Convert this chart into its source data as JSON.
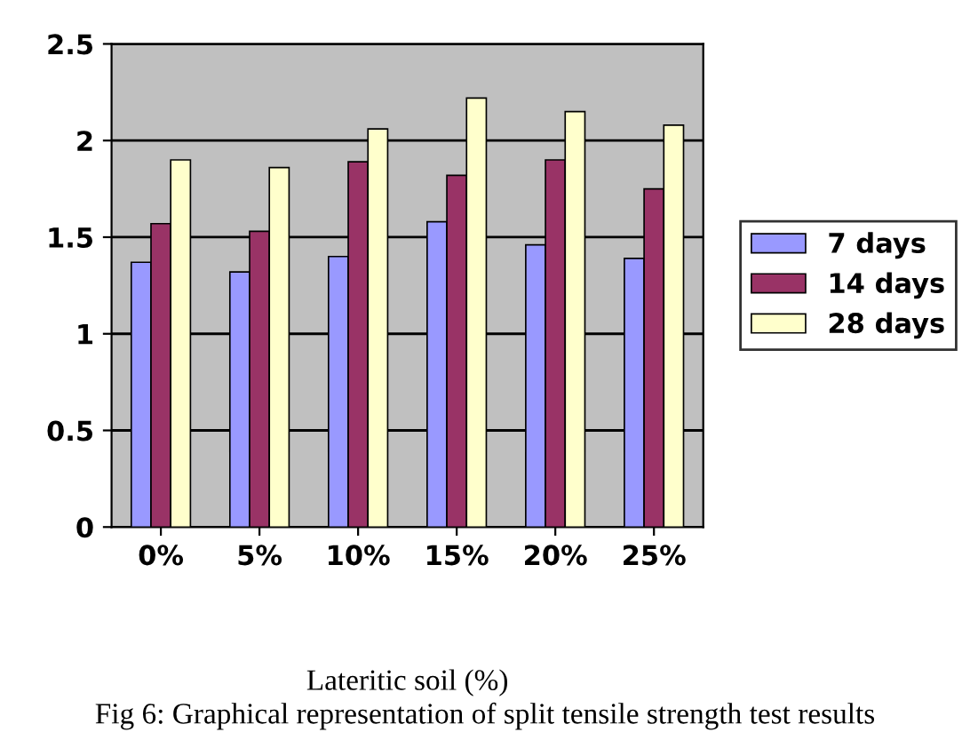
{
  "chart_data": {
    "type": "bar",
    "categories": [
      "0%",
      "5%",
      "10%",
      "15%",
      "20%",
      "25%"
    ],
    "series": [
      {
        "name": "7 days",
        "color": "#9999ff",
        "values": [
          1.37,
          1.32,
          1.4,
          1.58,
          1.46,
          1.39
        ]
      },
      {
        "name": "14 days",
        "color": "#993366",
        "values": [
          1.57,
          1.53,
          1.89,
          1.82,
          1.9,
          1.75
        ]
      },
      {
        "name": "28 days",
        "color": "#ffffcc",
        "values": [
          1.9,
          1.86,
          2.06,
          2.22,
          2.15,
          2.08
        ]
      }
    ],
    "ylim": [
      0,
      2.5
    ],
    "yticks": [
      0,
      0.5,
      1,
      1.5,
      2,
      2.5
    ],
    "grid": "y",
    "legend": "right",
    "xlabel": "Lateritic soil (%)",
    "annotations": [
      "Fig 6: Graphical representation of split tensile strength test results"
    ]
  }
}
